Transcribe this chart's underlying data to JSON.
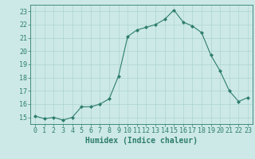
{
  "x": [
    0,
    1,
    2,
    3,
    4,
    5,
    6,
    7,
    8,
    9,
    10,
    11,
    12,
    13,
    14,
    15,
    16,
    17,
    18,
    19,
    20,
    21,
    22,
    23
  ],
  "y": [
    15.1,
    14.9,
    15.0,
    14.8,
    15.0,
    15.8,
    15.8,
    16.0,
    16.4,
    18.1,
    21.1,
    21.6,
    21.8,
    22.0,
    22.4,
    23.1,
    22.2,
    21.9,
    21.4,
    19.7,
    18.5,
    17.0,
    16.2,
    16.5
  ],
  "line_color": "#2e7d6e",
  "marker": "D",
  "marker_size": 2.0,
  "bg_color": "#cce9e7",
  "grid_color": "#aed4d1",
  "xlabel": "Humidex (Indice chaleur)",
  "xlim": [
    -0.5,
    23.5
  ],
  "ylim": [
    14.5,
    23.5
  ],
  "yticks": [
    15,
    16,
    17,
    18,
    19,
    20,
    21,
    22,
    23
  ],
  "xticks": [
    0,
    1,
    2,
    3,
    4,
    5,
    6,
    7,
    8,
    9,
    10,
    11,
    12,
    13,
    14,
    15,
    16,
    17,
    18,
    19,
    20,
    21,
    22,
    23
  ],
  "tick_color": "#2e7d6e",
  "label_fontsize": 6.0,
  "xlabel_fontsize": 7.0,
  "linewidth": 0.8
}
